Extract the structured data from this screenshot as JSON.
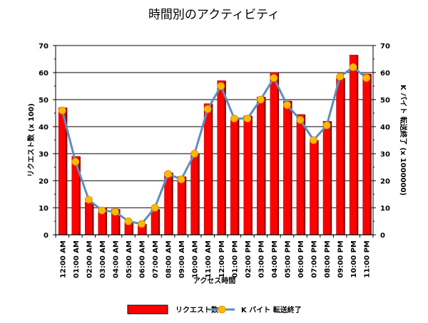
{
  "chart_data": {
    "type": "bar",
    "title": "時間別のアクティビティ",
    "xlabel": "アクセス時間",
    "ylabel": "リクエスト数 (x 100)",
    "y2label": "K バイト 転送終了 (x 1000000)",
    "ylim": [
      0,
      70
    ],
    "y2lim": [
      0,
      70
    ],
    "yticks": [
      0,
      10,
      20,
      30,
      40,
      50,
      60,
      70
    ],
    "grid": true,
    "legend_position": "bottom",
    "categories": [
      "12:00 AM",
      "01:00 AM",
      "02:00 AM",
      "03:00 AM",
      "04:00 AM",
      "05:00 AM",
      "06:00 AM",
      "07:00 AM",
      "08:00 AM",
      "09:00 AM",
      "10:00 AM",
      "11:00 AM",
      "12:00 PM",
      "01:00 PM",
      "02:00 PM",
      "03:00 PM",
      "04:00 PM",
      "05:00 PM",
      "06:00 PM",
      "07:00 PM",
      "08:00 PM",
      "09:00 PM",
      "10:00 PM",
      "11:00 PM"
    ],
    "series": [
      {
        "name": "リクエスト数",
        "type": "bar",
        "axis": "left",
        "color": "#ff0000",
        "values": [
          47,
          29,
          12,
          10,
          9.5,
          4.5,
          4,
          9.5,
          23,
          21.5,
          30,
          48.5,
          57,
          43,
          44,
          51,
          60,
          49.5,
          44.5,
          35,
          42,
          58,
          66.5,
          59.5
        ]
      },
      {
        "name": "K バイト 転送終了",
        "type": "line",
        "axis": "right",
        "color": "#5b8fbf",
        "marker_color": "#ffb800",
        "values": [
          46,
          27,
          13,
          9,
          8.5,
          5,
          4,
          10,
          22.5,
          20.5,
          30,
          46.5,
          55,
          43,
          43,
          50,
          58,
          48,
          42.5,
          35,
          40.5,
          58.5,
          62,
          58
        ]
      }
    ]
  }
}
